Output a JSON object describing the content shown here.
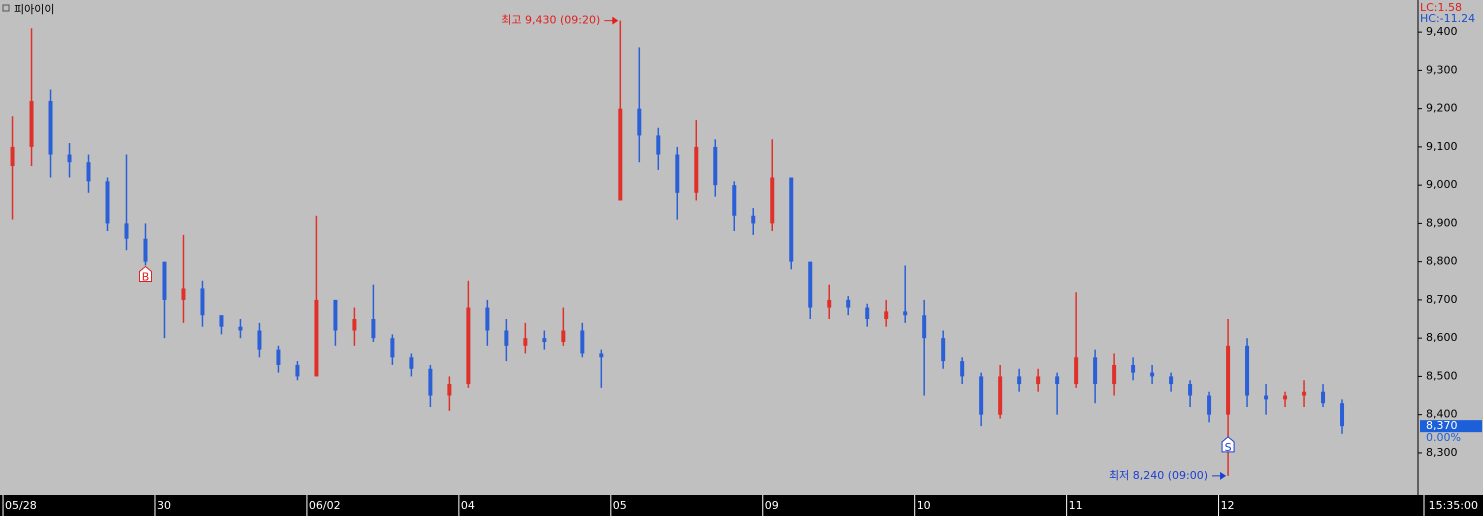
{
  "chart_data": {
    "type": "ohlc",
    "title": "피아이이",
    "legend_texts": [
      {
        "text": "LC:1.58",
        "color": "#e02020"
      },
      {
        "text": "HC:-11.24",
        "color": "#1c4fd0"
      }
    ],
    "up_color": "#e0302a",
    "down_color": "#2a5fd8",
    "open": [
      9050,
      9100,
      9220,
      9080,
      9060,
      9010,
      8900,
      8860,
      8800,
      8700,
      8730,
      8660,
      8630,
      8620,
      8570,
      8530,
      8500,
      8700,
      8620,
      8650,
      8600,
      8550,
      8520,
      8450,
      8480,
      8680,
      8620,
      8580,
      8600,
      8590,
      8620,
      8560,
      8960,
      9200,
      9130,
      9080,
      8980,
      9100,
      9000,
      8920,
      8900,
      9020,
      8800,
      8680,
      8700,
      8680,
      8650,
      8670,
      8660,
      8600,
      8540,
      8500,
      8400,
      8500,
      8480,
      8500,
      8480,
      8550,
      8480,
      8530,
      8510,
      8500,
      8480,
      8450,
      8400,
      8580,
      8450,
      8440,
      8450,
      8460,
      8430
    ],
    "high": [
      9180,
      9410,
      9250,
      9110,
      9080,
      9020,
      9080,
      8900,
      8800,
      8870,
      8750,
      8660,
      8650,
      8640,
      8580,
      8540,
      8920,
      8700,
      8680,
      8740,
      8610,
      8560,
      8530,
      8500,
      8750,
      8700,
      8650,
      8640,
      8620,
      8680,
      8640,
      8570,
      9430,
      9360,
      9150,
      9100,
      9170,
      9120,
      9010,
      8940,
      9120,
      9020,
      8800,
      8740,
      8710,
      8690,
      8700,
      8790,
      8700,
      8620,
      8550,
      8510,
      8530,
      8520,
      8520,
      8510,
      8720,
      8570,
      8560,
      8550,
      8530,
      8510,
      8490,
      8460,
      8650,
      8600,
      8480,
      8460,
      8490,
      8480,
      8440
    ],
    "low": [
      8910,
      9050,
      9020,
      9020,
      8980,
      8880,
      8830,
      8790,
      8600,
      8640,
      8630,
      8610,
      8600,
      8550,
      8510,
      8490,
      8500,
      8580,
      8580,
      8590,
      8530,
      8500,
      8420,
      8410,
      8470,
      8580,
      8540,
      8560,
      8570,
      8580,
      8550,
      8470,
      8960,
      9060,
      9040,
      8910,
      8960,
      8970,
      8880,
      8870,
      8880,
      8780,
      8650,
      8650,
      8660,
      8630,
      8630,
      8640,
      8450,
      8520,
      8480,
      8370,
      8390,
      8460,
      8460,
      8400,
      8470,
      8430,
      8450,
      8490,
      8480,
      8460,
      8420,
      8380,
      8240,
      8420,
      8400,
      8420,
      8420,
      8420,
      8350
    ],
    "close": [
      9100,
      9220,
      9080,
      9060,
      9010,
      8900,
      8860,
      8800,
      8700,
      8730,
      8660,
      8630,
      8620,
      8570,
      8530,
      8500,
      8700,
      8620,
      8650,
      8600,
      8550,
      8520,
      8450,
      8480,
      8680,
      8620,
      8580,
      8600,
      8590,
      8620,
      8560,
      8550,
      9200,
      9130,
      9080,
      8980,
      9100,
      9000,
      8920,
      8900,
      9020,
      8800,
      8680,
      8700,
      8680,
      8650,
      8670,
      8660,
      8600,
      8540,
      8500,
      8400,
      8500,
      8480,
      8500,
      8480,
      8550,
      8480,
      8530,
      8510,
      8500,
      8480,
      8450,
      8400,
      8580,
      8450,
      8440,
      8450,
      8460,
      8430,
      8370
    ],
    "xlim": [
      -0.16,
      74.5
    ],
    "xticks": [
      {
        "value": 0,
        "label": "05/28"
      },
      {
        "value": 8,
        "label": "30"
      },
      {
        "value": 16,
        "label": "06/02"
      },
      {
        "value": 24,
        "label": "04"
      },
      {
        "value": 32,
        "label": "05"
      },
      {
        "value": 40,
        "label": "09"
      },
      {
        "value": 48,
        "label": "10"
      },
      {
        "value": 56,
        "label": "11"
      },
      {
        "value": 64,
        "label": "12"
      }
    ],
    "time_label": "15:35:00",
    "ylim": [
      8190,
      9484
    ],
    "yticks": [
      {
        "value": 8300,
        "label": "8,300"
      },
      {
        "value": 8400,
        "label": "8,400"
      },
      {
        "value": 8500,
        "label": "8,500"
      },
      {
        "value": 8600,
        "label": "8,600"
      },
      {
        "value": 8700,
        "label": "8,700"
      },
      {
        "value": 8800,
        "label": "8,800"
      },
      {
        "value": 8900,
        "label": "8,900"
      },
      {
        "value": 9000,
        "label": "9,000"
      },
      {
        "value": 9100,
        "label": "9,100"
      },
      {
        "value": 9200,
        "label": "9,200"
      },
      {
        "value": 9300,
        "label": "9,300"
      },
      {
        "value": 9400,
        "label": "9,400"
      }
    ],
    "annotations": [
      {
        "text": "최고 9,430 (09:20)",
        "value": 9430,
        "color": "#e02020"
      },
      {
        "text": "최저 8,240 (09:00)",
        "value": 8240,
        "color": "#1c3fd0"
      }
    ],
    "signals": [
      {
        "label": "B",
        "x": 7.5,
        "color": "#e02020"
      },
      {
        "label": "S",
        "x": 64.5,
        "color": "#1c3fd0"
      }
    ],
    "last_price": {
      "value": 8370,
      "label": "8,370"
    },
    "change_label": "0.00%"
  }
}
